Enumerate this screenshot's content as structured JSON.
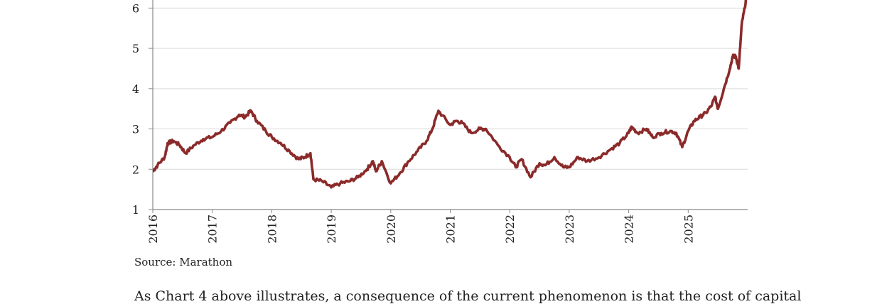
{
  "chart_data": {
    "type": "line",
    "title": "",
    "xlabel": "",
    "ylabel": "",
    "ylim": [
      1,
      6.5
    ],
    "xlim": [
      2016.0,
      2026.0
    ],
    "y_ticks": [
      "1",
      "2",
      "3",
      "4",
      "5",
      "6"
    ],
    "x_ticks": [
      "2016",
      "2017",
      "2018",
      "2019",
      "2020",
      "2021",
      "2022",
      "2023",
      "2024",
      "2025"
    ],
    "grid": "horizontal",
    "legend": "none",
    "colors": {
      "line": "#8b2a2a",
      "grid": "#d9d9d9",
      "axis": "#888888"
    },
    "series": [
      {
        "x": [
          2016.0,
          2016.08,
          2016.2,
          2016.25,
          2016.35,
          2016.45,
          2016.55,
          2016.7,
          2016.85,
          2017.0,
          2017.15,
          2017.3,
          2017.45,
          2017.55,
          2017.65,
          2017.75,
          2017.9,
          2018.0,
          2018.15,
          2018.3,
          2018.45,
          2018.55,
          2018.65,
          2018.7,
          2018.85,
          2019.0,
          2019.15,
          2019.3,
          2019.45,
          2019.6,
          2019.7,
          2019.75,
          2019.85,
          2020.0,
          2020.15,
          2020.3,
          2020.45,
          2020.6,
          2020.7,
          2020.8,
          2021.0,
          2021.1,
          2021.2,
          2021.35,
          2021.5,
          2021.6,
          2021.8,
          2022.0,
          2022.1,
          2022.2,
          2022.35,
          2022.5,
          2022.6,
          2022.75,
          2022.9,
          2023.0,
          2023.15,
          2023.3,
          2023.5,
          2023.7,
          2023.85,
          2024.0,
          2024.05,
          2024.15,
          2024.3,
          2024.4,
          2024.55,
          2024.7,
          2024.8,
          2024.9,
          2025.0,
          2025.1,
          2025.2,
          2025.3,
          2025.4,
          2025.45,
          2025.5,
          2025.6,
          2025.7,
          2025.75,
          2025.8,
          2025.85,
          2025.9,
          2025.95,
          2026.0
        ],
        "y": [
          1.95,
          2.1,
          2.3,
          2.65,
          2.7,
          2.6,
          2.4,
          2.6,
          2.75,
          2.8,
          2.95,
          3.15,
          3.35,
          3.3,
          3.45,
          3.2,
          2.95,
          2.8,
          2.65,
          2.45,
          2.25,
          2.3,
          2.4,
          1.75,
          1.7,
          1.55,
          1.65,
          1.7,
          1.8,
          2.0,
          2.2,
          1.95,
          2.2,
          1.65,
          1.9,
          2.2,
          2.45,
          2.7,
          3.0,
          3.45,
          3.1,
          3.2,
          3.15,
          2.9,
          3.0,
          3.0,
          2.6,
          2.3,
          2.05,
          2.25,
          1.8,
          2.15,
          2.1,
          2.3,
          2.05,
          2.05,
          2.3,
          2.2,
          2.3,
          2.5,
          2.65,
          2.9,
          3.05,
          2.9,
          3.0,
          2.8,
          2.9,
          2.95,
          2.9,
          2.55,
          2.95,
          3.2,
          3.3,
          3.4,
          3.6,
          3.8,
          3.5,
          4.0,
          4.5,
          4.8,
          4.8,
          4.5,
          5.6,
          6.0,
          6.5
        ]
      }
    ]
  },
  "source": "Source: Marathon",
  "body_text": "As Chart 4 above illustrates, a consequence of the current phenomenon is that the cost of capital"
}
